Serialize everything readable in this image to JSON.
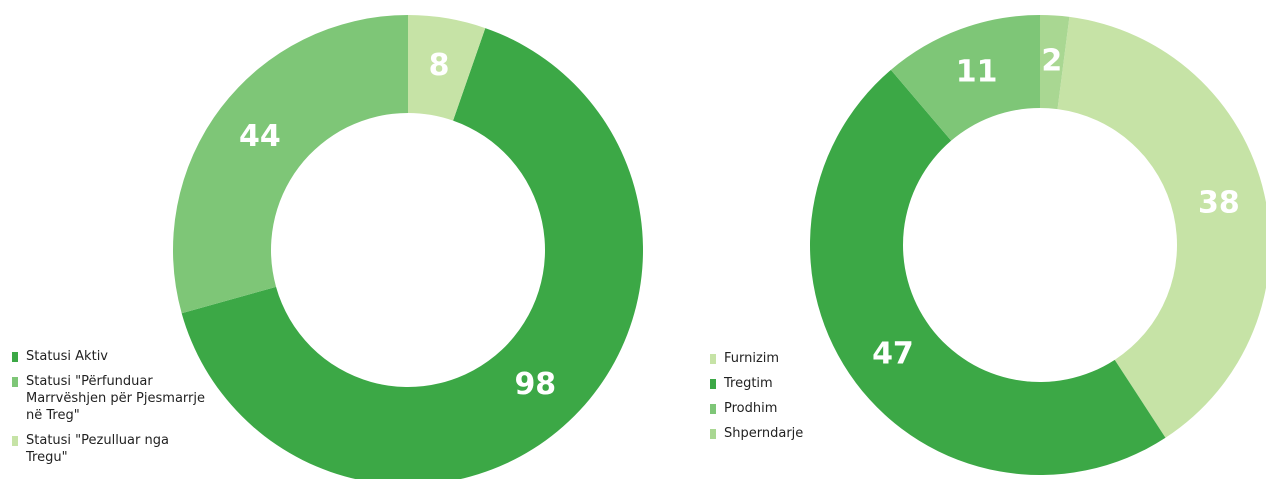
{
  "chart_data": [
    {
      "type": "donut",
      "categories": [
        "Statusi Aktiv",
        "Statusi \"Përfunduar Marrvëshjen për Pjesmarrje në Treg\"",
        "Statusi \"Pezulluar nga Tregu\""
      ],
      "values": [
        98,
        44,
        8
      ],
      "colors": [
        "#3ca846",
        "#7ec677",
        "#c6e3a6"
      ]
    },
    {
      "type": "donut",
      "categories": [
        "Furnizim",
        "Tregtim",
        "Prodhim",
        "Shperndarje"
      ],
      "values": [
        38,
        47,
        11,
        2
      ],
      "colors": [
        "#c6e3a6",
        "#3ca846",
        "#7ec677",
        "#a9d792"
      ]
    }
  ]
}
